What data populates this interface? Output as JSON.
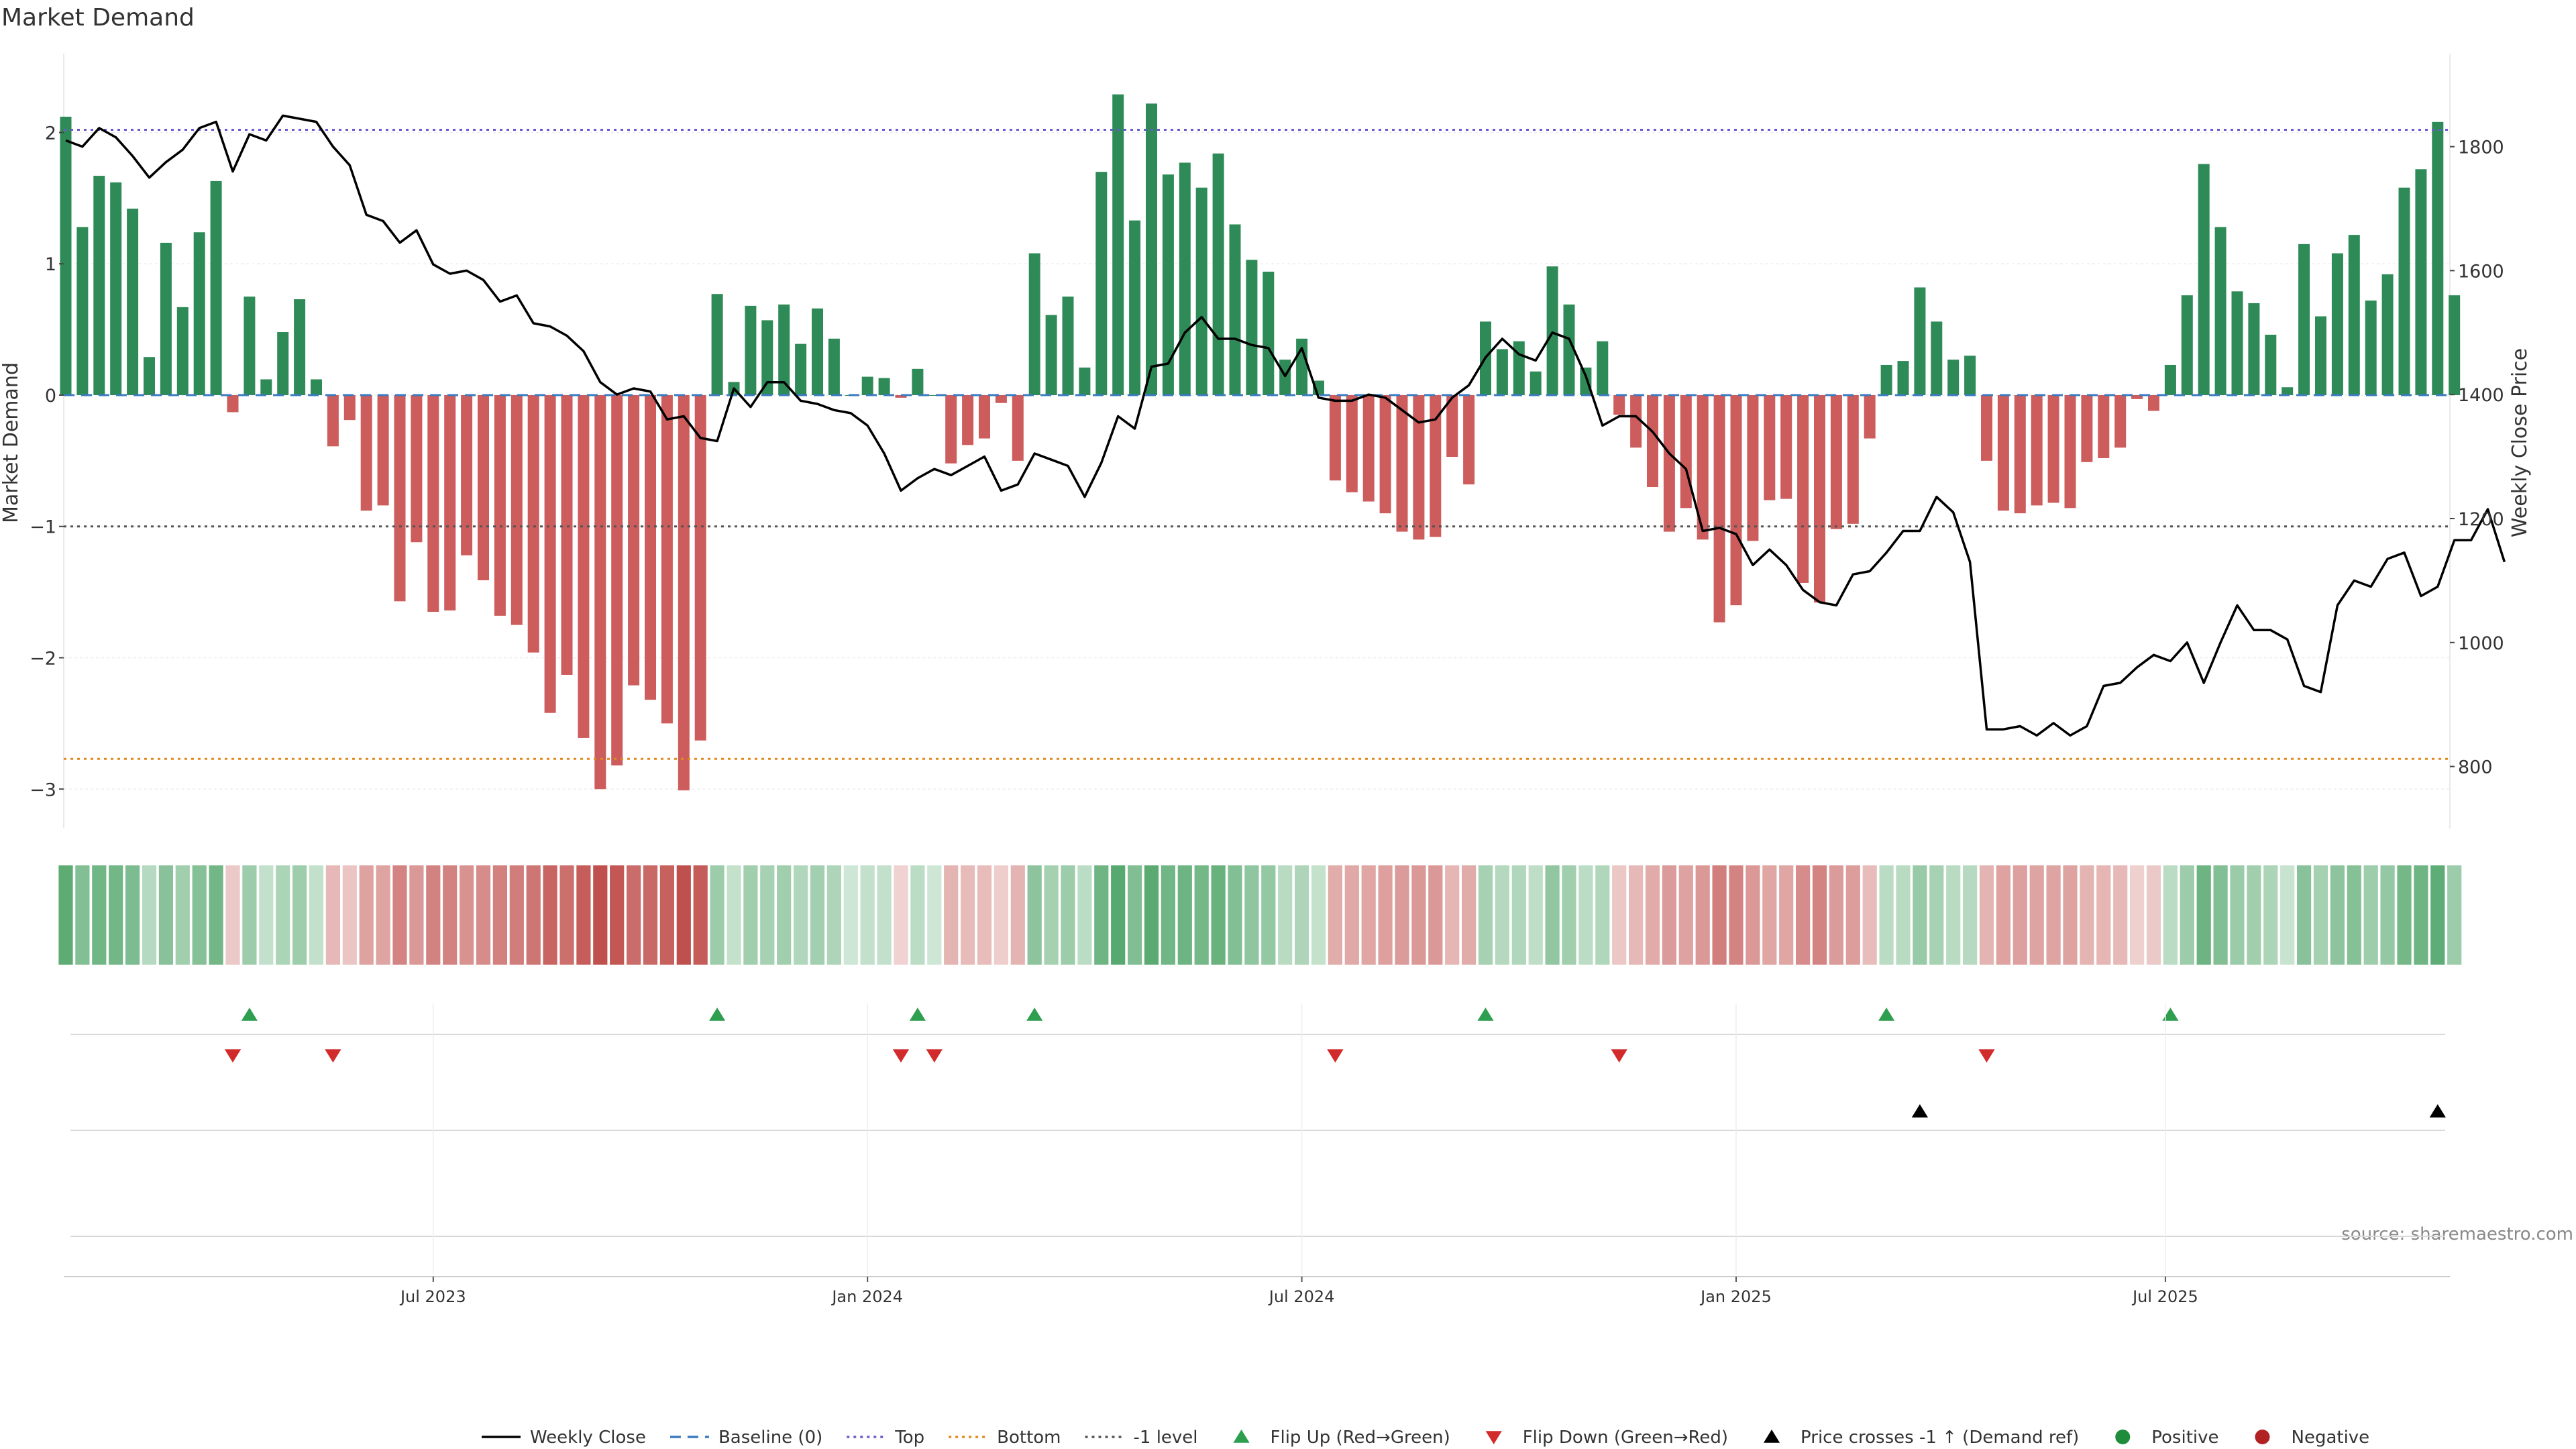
{
  "chart_data": {
    "type": "bar",
    "title": "Market Demand",
    "ylabel": "Market Demand",
    "y2label": "Weekly Close Price",
    "ylim": [
      -3.3,
      2.6
    ],
    "y2lim": [
      700,
      1950
    ],
    "yticks": [
      "−3",
      "−2",
      "−1",
      "0",
      "1",
      "2"
    ],
    "y2ticks": [
      "800",
      "1000",
      "1200",
      "1400",
      "1600",
      "1800"
    ],
    "reference_lines": {
      "top": 2.02,
      "bottom": -2.77,
      "minus_one": -1.0,
      "baseline": 0
    },
    "x_axis": {
      "start": "2023-01-30",
      "week_days": 7,
      "ticks": [
        {
          "label": "Jul 2023",
          "week": 22
        },
        {
          "label": "Jan 2024",
          "week": 48
        },
        {
          "label": "Jul 2024",
          "week": 74
        },
        {
          "label": "Jan 2025",
          "week": 100
        },
        {
          "label": "Jul 2025",
          "week": 125.7
        }
      ]
    },
    "series": [
      {
        "name": "Market Demand",
        "values": [
          2.12,
          1.28,
          1.67,
          1.62,
          1.42,
          0.29,
          1.16,
          0.67,
          1.24,
          1.63,
          -0.13,
          0.75,
          0.12,
          0.48,
          0.73,
          0.12,
          -0.39,
          -0.19,
          -0.88,
          -0.84,
          -1.57,
          -1.12,
          -1.65,
          -1.64,
          -1.22,
          -1.41,
          -1.68,
          -1.75,
          -1.96,
          -2.42,
          -2.13,
          -2.61,
          -3.0,
          -2.82,
          -2.21,
          -2.32,
          -2.5,
          -3.01,
          -2.63,
          0.77,
          0.1,
          0.68,
          0.57,
          0.69,
          0.39,
          0.66,
          0.43,
          0.0,
          0.14,
          0.13,
          -0.02,
          0.2,
          0.0,
          -0.52,
          -0.38,
          -0.33,
          -0.06,
          -0.5,
          1.08,
          0.61,
          0.75,
          0.21,
          1.7,
          2.29,
          1.33,
          2.22,
          1.68,
          1.77,
          1.58,
          1.84,
          1.3,
          1.03,
          0.94,
          0.27,
          0.43,
          0.11,
          -0.65,
          -0.74,
          -0.81,
          -0.9,
          -1.04,
          -1.1,
          -1.08,
          -0.47,
          -0.68,
          0.56,
          0.35,
          0.41,
          0.18,
          0.98,
          0.69,
          0.21,
          0.41,
          -0.15,
          -0.4,
          -0.7,
          -1.04,
          -0.86,
          -1.1,
          -1.73,
          -1.6,
          -1.11,
          -0.8,
          -0.79,
          -1.43,
          -1.58,
          -1.02,
          -0.98,
          -0.33,
          0.23,
          0.26,
          0.82,
          0.56,
          0.27,
          0.3,
          -0.5,
          -0.88,
          -0.9,
          -0.84,
          -0.82,
          -0.86,
          -0.51,
          -0.48,
          -0.4,
          -0.03,
          -0.12,
          0.23,
          0.76,
          1.76,
          1.28,
          0.79,
          0.7,
          0.46,
          0.06,
          1.15,
          0.6,
          1.08,
          1.22,
          0.72,
          0.92,
          1.58,
          1.72,
          2.08,
          0.76
        ]
      },
      {
        "name": "Weekly Close",
        "values": [
          1810,
          1800,
          1830,
          1815,
          1785,
          1750,
          1775,
          1795,
          1830,
          1840,
          1760,
          1820,
          1810,
          1850,
          1845,
          1840,
          1800,
          1770,
          1690,
          1680,
          1645,
          1665,
          1610,
          1595,
          1600,
          1585,
          1550,
          1560,
          1515,
          1510,
          1495,
          1470,
          1420,
          1400,
          1410,
          1405,
          1360,
          1365,
          1330,
          1325,
          1410,
          1380,
          1420,
          1420,
          1390,
          1385,
          1375,
          1370,
          1350,
          1305,
          1245,
          1265,
          1280,
          1270,
          1285,
          1300,
          1245,
          1255,
          1305,
          1295,
          1285,
          1235,
          1290,
          1365,
          1345,
          1445,
          1450,
          1500,
          1525,
          1490,
          1490,
          1480,
          1475,
          1430,
          1475,
          1395,
          1390,
          1390,
          1400,
          1395,
          1375,
          1355,
          1360,
          1395,
          1415,
          1460,
          1490,
          1465,
          1455,
          1500,
          1490,
          1430,
          1350,
          1365,
          1365,
          1340,
          1305,
          1280,
          1180,
          1185,
          1175,
          1125,
          1150,
          1125,
          1085,
          1065,
          1060,
          1110,
          1115,
          1145,
          1180,
          1180,
          1235,
          1210,
          1130,
          860,
          860,
          865,
          850,
          870,
          850,
          865,
          930,
          935,
          960,
          980,
          970,
          1000,
          935,
          1000,
          1060,
          1020,
          1020,
          1005,
          930,
          920,
          1060,
          1100,
          1090,
          1135,
          1145,
          1075,
          1090,
          1165,
          1165,
          1215,
          1130
        ]
      }
    ],
    "flip_up_weeks": [
      11,
      39,
      51,
      58,
      85,
      109,
      126
    ],
    "flip_down_weeks": [
      10,
      16,
      50,
      52,
      76,
      93,
      115
    ],
    "price_cross_weeks": [
      111,
      142
    ],
    "legend": [
      {
        "label": "Weekly Close",
        "style": "line",
        "color": "#000000"
      },
      {
        "label": "Baseline (0)",
        "style": "dash",
        "color": "#3a7bbf"
      },
      {
        "label": "Top",
        "style": "dot",
        "color": "#6a5acd"
      },
      {
        "label": "Bottom",
        "style": "dot",
        "color": "#e08a1e"
      },
      {
        "label": "-1 level",
        "style": "dot",
        "color": "#555555"
      },
      {
        "label": "Flip Up (Red→Green)",
        "style": "tri-up",
        "color": "#2e9e4f"
      },
      {
        "label": "Flip Down (Green→Red)",
        "style": "tri-down",
        "color": "#d12b2b"
      },
      {
        "label": "Price crosses -1 ↑ (Demand ref)",
        "style": "tri-up",
        "color": "#000000"
      },
      {
        "label": "Positive",
        "style": "dot-marker",
        "color": "#1e8c3a"
      },
      {
        "label": "Negative",
        "style": "dot-marker",
        "color": "#b22222"
      }
    ],
    "legend_position": "bottom-center",
    "colors": {
      "positive": "#2e8b57",
      "negative": "#cd5c5c"
    },
    "source": "source: sharemaestro.com"
  }
}
